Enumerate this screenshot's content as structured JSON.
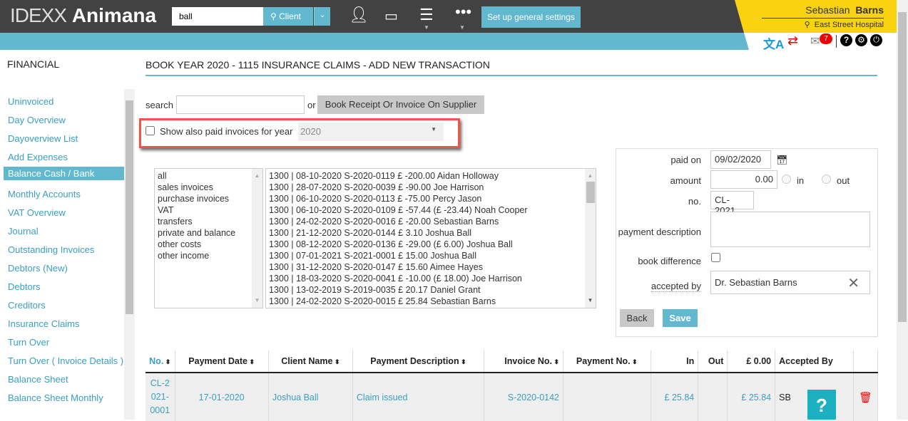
{
  "header": {
    "logo_light": "IDEXX",
    "logo_bold": "Animana",
    "search_value": "ball",
    "client_button": "Client",
    "setup_button": "Set up general settings",
    "user_first": "Sebastian",
    "user_last": "Barns",
    "location": "East Street Hospital",
    "mail_count": "7"
  },
  "sidebar": {
    "title": "FINANCIAL",
    "items": [
      {
        "label": "Uninvoiced"
      },
      {
        "label": "Day Overview"
      },
      {
        "label": "Dayoverview List"
      },
      {
        "label": "Add Expenses"
      },
      {
        "label": "Balance Cash / Bank",
        "active": true
      },
      {
        "label": "Monthly Accounts"
      },
      {
        "label": "VAT Overview"
      },
      {
        "label": "Journal"
      },
      {
        "label": "Outstanding Invoices"
      },
      {
        "label": "Debtors (New)"
      },
      {
        "label": "Debtors"
      },
      {
        "label": "Creditors"
      },
      {
        "label": "Insurance Claims"
      },
      {
        "label": "Turn Over"
      },
      {
        "label": "Turn Over ( Invoice Details )"
      },
      {
        "label": "Balance Sheet"
      },
      {
        "label": "Balance Sheet Monthly"
      }
    ]
  },
  "main": {
    "title": "BOOK YEAR 2020 - 1115 INSURANCE CLAIMS - ADD NEW TRANSACTION",
    "search_label": "search",
    "search_value": "",
    "or_label": "or",
    "book_button": "Book Receipt Or Invoice On Supplier",
    "show_paid_label": "Show also paid invoices for year",
    "year_value": "2020",
    "categories": [
      "all",
      "sales invoices",
      "purchase invoices",
      "VAT",
      "transfers",
      "private and balance",
      "other costs",
      "other income"
    ],
    "invoices": [
      "1300 | 08-10-2020 S-2020-0119 £ -200.00 Aidan Holloway",
      "1300 | 28-07-2020 S-2020-0039 £ -90.00 Joe Harrison",
      "1300 | 06-10-2020 S-2020-0113 £ -75.00 Percy Jason",
      "1300 | 06-10-2020 S-2020-0109 £ -57.44 (£ -23.44) Noah Cooper",
      "1300 | 24-02-2020 S-2020-0016 £ -20.00 Sebastian Barns",
      "1300 | 21-12-2020 S-2020-0144 £ 3.10 Joshua Ball",
      "1300 | 08-12-2020 S-2020-0136 £ -29.00 (£ 6.00) Joshua Ball",
      "1300 | 07-01-2021 S-2021-0001 £ 15.00 Joshua Ball",
      "1300 | 31-12-2020 S-2020-0147 £ 15.60 Aimee Hayes",
      "1300 | 18-03-2020 S-2020-0041 £ -10.00 (£ 18.00) Joe Harrison",
      "1300 | 13-02-2019 S-2019-0035 £ 20.17 Daniel Grant",
      "1300 | 24-02-2020 S-2020-0015 £ 25.84 Sebastian Barns"
    ]
  },
  "form": {
    "paid_on_label": "paid on",
    "paid_on": "09/02/2020",
    "amount_label": "amount",
    "amount": "0.00",
    "in_label": "in",
    "out_label": "out",
    "no_label": "no.",
    "no": "CL-2021",
    "desc_label": "payment description",
    "desc": "",
    "diff_label": "book difference",
    "accepted_label": "accepted by",
    "accepted": "Dr. Sebastian Barns",
    "back": "Back",
    "save": "Save"
  },
  "table": {
    "headers": [
      "No.",
      "Payment Date",
      "Client Name",
      "Payment Description",
      "Invoice No.",
      "Payment No.",
      "In",
      "Out",
      "£ 0.00",
      "Accepted By"
    ],
    "rows": [
      {
        "no": "CL-2021-0001",
        "date": "17-01-2020",
        "client": "Joshua Ball",
        "desc": "Claim issued",
        "invoice": "S-2020-0142",
        "payment": "",
        "in": "£ 25.84",
        "out": "",
        "total": "£ 25.84",
        "accepted": "SB"
      }
    ]
  },
  "help_label": "?"
}
